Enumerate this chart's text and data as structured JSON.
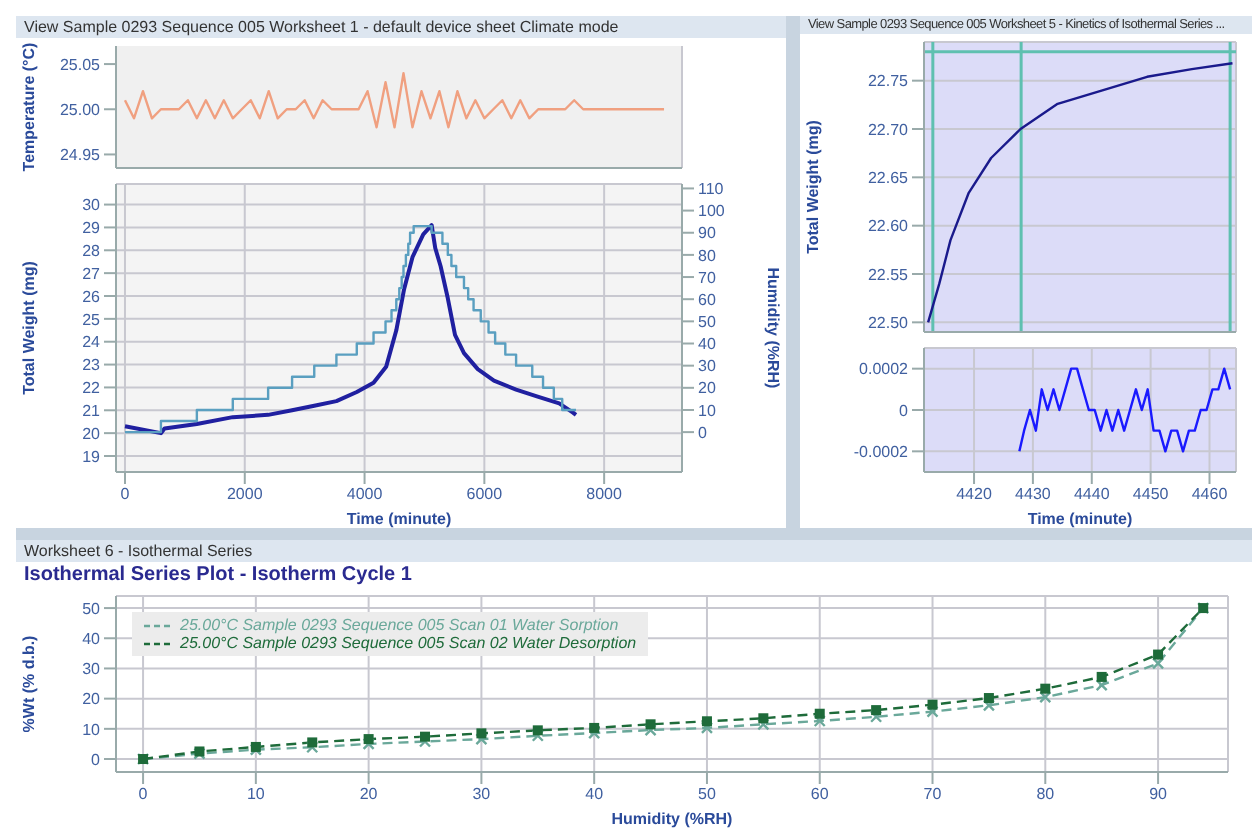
{
  "chart_data": [
    {
      "type": "line",
      "title": "View Sample 0293 Sequence 005  Worksheet 1 - default device sheet Climate mode",
      "ylabel": "Temperature (°C)",
      "xlim": [
        -150,
        9300
      ],
      "xticks": [
        0,
        2000,
        4000,
        6000,
        8000
      ],
      "ylim": [
        24.935,
        25.07
      ],
      "yticks": [
        24.95,
        {
          "value": 25,
          "label": "25.00"
        },
        25.05
      ],
      "grid": "x",
      "tick_labels": "y",
      "series": [
        {
          "color": "#f0a080",
          "x": [
            0,
            150,
            300,
            450,
            600,
            750,
            900,
            1050,
            1200,
            1350,
            1500,
            1650,
            1800,
            1950,
            2100,
            2250,
            2400,
            2550,
            2700,
            2850,
            3000,
            3150,
            3300,
            3450,
            3600,
            3750,
            3900,
            4050,
            4200,
            4350,
            4500,
            4650,
            4800,
            4950,
            5100,
            5250,
            5400,
            5550,
            5700,
            5850,
            6000,
            6150,
            6300,
            6450,
            6600,
            6750,
            6900,
            7050,
            7200,
            7350,
            7500,
            7650,
            7800,
            7950,
            8100,
            8250,
            8400,
            8550,
            8700,
            8850,
            9000
          ],
          "values": [
            25.01,
            24.99,
            25.02,
            24.99,
            25.0,
            25.0,
            25.0,
            25.01,
            24.99,
            25.01,
            24.99,
            25.01,
            24.99,
            25.0,
            25.01,
            24.99,
            25.02,
            24.99,
            25.0,
            25.0,
            25.01,
            24.99,
            25.01,
            25.0,
            25.0,
            25.0,
            25.0,
            25.02,
            24.98,
            25.03,
            24.98,
            25.04,
            24.98,
            25.02,
            24.99,
            25.02,
            24.98,
            25.02,
            24.99,
            25.01,
            24.99,
            25.0,
            25.01,
            24.99,
            25.01,
            24.99,
            25.0,
            25.0,
            25.0,
            25.0,
            25.01,
            25.0,
            25.0,
            25.0,
            25.0,
            25.0,
            25.0,
            25.0,
            25.0,
            25.0,
            25.0
          ]
        }
      ]
    },
    {
      "type": "line",
      "xlabel": "Time (minute)",
      "ylabel": "Total Weight (mg)",
      "y2label": "Humidity (%RH)",
      "xlim": [
        -150,
        9300
      ],
      "xticks": [
        0,
        2000,
        4000,
        6000,
        8000
      ],
      "ylim": [
        18.3,
        30.9
      ],
      "yticks": [
        19,
        20,
        21,
        22,
        23,
        24,
        25,
        26,
        27,
        28,
        29,
        30
      ],
      "y2lim": [
        -18,
        112
      ],
      "y2ticks": [
        0,
        10,
        20,
        30,
        40,
        50,
        60,
        70,
        80,
        90,
        100,
        110
      ],
      "grid": true,
      "series": [
        {
          "color": "#2020a0",
          "x": [
            0,
            600,
            660,
            1200,
            1800,
            2390,
            2790,
            3160,
            3530,
            3870,
            4150,
            4360,
            4530,
            4660,
            4800,
            4980,
            5120,
            5180,
            5270,
            5390,
            5510,
            5660,
            5890,
            6160,
            6530,
            6890,
            7250,
            7480,
            7530
          ],
          "values": [
            20.3,
            20.0,
            20.2,
            20.4,
            20.7,
            20.8,
            21.0,
            21.2,
            21.4,
            21.8,
            22.2,
            22.9,
            24.5,
            26.3,
            27.7,
            28.7,
            29.1,
            28.1,
            27.3,
            25.9,
            24.3,
            23.5,
            22.8,
            22.3,
            21.9,
            21.6,
            21.3,
            20.9,
            20.8
          ]
        },
        {
          "type": "step",
          "axis": "y2",
          "color": "#5a9fc0",
          "x": [
            0,
            600,
            1200,
            1800,
            2390,
            2790,
            3160,
            3530,
            3870,
            4150,
            4350,
            4450,
            4530,
            4580,
            4620,
            4650,
            4690,
            4730,
            4760,
            4820,
            5120,
            5300,
            5390,
            5450,
            5530,
            5660,
            5730,
            5820,
            5940,
            6070,
            6180,
            6350,
            6530,
            6800,
            6980,
            7160,
            7300,
            7530
          ],
          "values": [
            0,
            5,
            10,
            15,
            20,
            25,
            30,
            35,
            40,
            45,
            50,
            55,
            60,
            65,
            70,
            75,
            80,
            85,
            90,
            93,
            90,
            85,
            80,
            75,
            70,
            65,
            60,
            55,
            50,
            45,
            40,
            35,
            30,
            25,
            20,
            15,
            10,
            10
          ]
        }
      ]
    },
    {
      "type": "line",
      "title": "View Sample 0293 Sequence 005  Worksheet 5 - Kinetics of Isothermal Series ...",
      "ylabel": "Total Weight (mg)",
      "xlim": [
        4411.5,
        4464.5
      ],
      "xticks": [
        4420,
        4430,
        4440,
        4450,
        4460
      ],
      "ylim": [
        22.49,
        22.79
      ],
      "yticks": [
        {
          "value": 22.5,
          "label": "22.50"
        },
        22.55,
        {
          "value": 22.6,
          "label": "22.60"
        },
        22.65,
        {
          "value": 22.7,
          "label": "22.70"
        },
        22.75
      ],
      "grid": true,
      "tick_labels": "y",
      "ref_lines": [
        {
          "axis": "y",
          "value": 22.78,
          "color": "#5fc0b0"
        },
        {
          "axis": "x",
          "value": 4413,
          "color": "#5fc0b0"
        },
        {
          "axis": "x",
          "value": 4428,
          "color": "#5fc0b0"
        },
        {
          "axis": "x",
          "value": 4463.5,
          "color": "#5fc0b0"
        }
      ],
      "series": [
        {
          "color": "#1a1a8c",
          "x": [
            4412.2,
            4414.1,
            4416,
            4419.1,
            4422.9,
            4427.9,
            4434.2,
            4441.8,
            4449.4,
            4457,
            4463.9
          ],
          "values": [
            22.5,
            22.54,
            22.585,
            22.634,
            22.67,
            22.7,
            22.726,
            22.74,
            22.754,
            22.762,
            22.768
          ]
        }
      ]
    },
    {
      "type": "line",
      "xlabel": "Time (minute)",
      "xlim": [
        4411.5,
        4464.5
      ],
      "xticks": [
        4420,
        4430,
        4440,
        4450,
        4460
      ],
      "ylim": [
        -0.0003,
        0.0003
      ],
      "yticks": [
        -0.0002,
        0,
        0.0002
      ],
      "grid": true,
      "series": [
        {
          "color": "#1a1aff",
          "x": [
            4427.7,
            4428.5,
            4429.5,
            4430.5,
            4431.5,
            4432.5,
            4433.5,
            4434.5,
            4435.5,
            4436.5,
            4437.5,
            4438.5,
            4439.5,
            4440.5,
            4441.5,
            4442.5,
            4443.5,
            4444.5,
            4445.5,
            4446.5,
            4447.5,
            4448.5,
            4449.5,
            4450.5,
            4451.5,
            4452.5,
            4453.5,
            4454.5,
            4455.5,
            4456.5,
            4457.5,
            4458.5,
            4459.5,
            4460.5,
            4461.5,
            4462.5,
            4463.5
          ],
          "values": [
            -0.0002,
            -0.0001,
            0,
            -0.0001,
            0.0001,
            0,
            0.0001,
            0,
            0.0001,
            0.0002,
            0.0002,
            0.0001,
            0,
            0,
            -0.0001,
            0,
            -0.0001,
            0,
            -0.0001,
            0,
            0.0001,
            0,
            0.0001,
            -0.0001,
            -0.0001,
            -0.0002,
            -0.0001,
            -0.0001,
            -0.0002,
            -0.0001,
            -0.0001,
            0,
            0,
            0.0001,
            0.0001,
            0.0002,
            0.0001
          ]
        }
      ]
    },
    {
      "type": "line",
      "title": "Isothermal Series Plot - Isotherm Cycle 1",
      "annotations": [
        "Worksheet 6 - Isothermal Series"
      ],
      "xlabel": "Humidity (%RH)",
      "ylabel": "%Wt (% d.b.)",
      "xlim": [
        -2.4,
        96.2
      ],
      "xticks": [
        0,
        10,
        20,
        30,
        40,
        50,
        60,
        70,
        80,
        90
      ],
      "ylim": [
        -4.3,
        54
      ],
      "yticks": [
        0,
        10,
        20,
        30,
        40,
        50
      ],
      "grid": true,
      "legend": "top left",
      "line_style": "dashed",
      "series": [
        {
          "name": "25.00°C Sample 0293 Sequence 005 Scan 01 Water Sorption",
          "color": "#6aa89a",
          "marker": "cross",
          "x": [
            0,
            5,
            10,
            15,
            20,
            25,
            30,
            35,
            40,
            45,
            50,
            55,
            60,
            65,
            70,
            75,
            80,
            85,
            90,
            94
          ],
          "values": [
            0,
            1.8,
            3.1,
            3.9,
            5.0,
            5.8,
            6.6,
            7.7,
            8.6,
            9.6,
            10.3,
            11.5,
            12.6,
            14,
            15.7,
            17.8,
            20.5,
            24.5,
            31.7,
            50
          ]
        },
        {
          "name": "25.00°C Sample 0293 Sequence 005 Scan 02 Water Desorption",
          "color": "#1e6b3a",
          "marker": "square",
          "x": [
            0,
            5,
            10,
            15,
            20,
            25,
            30,
            35,
            40,
            45,
            50,
            55,
            60,
            65,
            70,
            75,
            80,
            85,
            90,
            94
          ],
          "values": [
            0,
            2.5,
            4,
            5.5,
            6.6,
            7.4,
            8.5,
            9.5,
            10.3,
            11.5,
            12.5,
            13.5,
            15,
            16.2,
            18,
            20.2,
            23.3,
            27.2,
            34.6,
            50
          ]
        }
      ]
    }
  ]
}
